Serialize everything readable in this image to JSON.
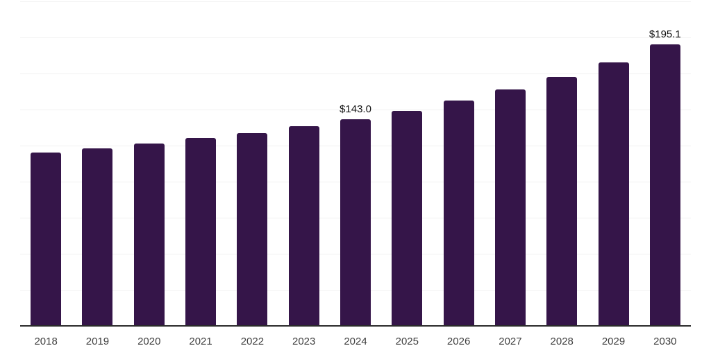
{
  "chart_data": {
    "type": "bar",
    "categories": [
      "2018",
      "2019",
      "2020",
      "2021",
      "2022",
      "2023",
      "2024",
      "2025",
      "2026",
      "2027",
      "2028",
      "2029",
      "2030"
    ],
    "values": [
      120.0,
      122.9,
      126.0,
      129.9,
      133.6,
      138.2,
      143.0,
      148.9,
      155.8,
      163.5,
      172.3,
      182.5,
      195.1
    ],
    "point_labels": [
      {
        "category": "2024",
        "text": "$143.0"
      },
      {
        "category": "2030",
        "text": "$195.1"
      }
    ],
    "title": "",
    "xlabel": "",
    "ylabel": "",
    "ylim": [
      0,
      225
    ],
    "gridline_step": 25,
    "grid": "horizontal",
    "legend_position": "none",
    "y_tick_labels_visible": false,
    "colors": {
      "bar": "#351549",
      "axis_line": "#2b2b2b",
      "gridline": "#f1f1f1",
      "tick_label": "#404040",
      "value_label": "#141414",
      "background": "#ffffff"
    }
  }
}
